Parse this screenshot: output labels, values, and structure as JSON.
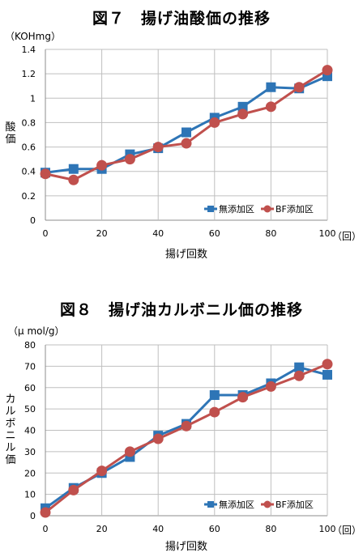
{
  "figures": [
    {
      "title": "図７　揚げ油酸価の推移",
      "unit": "（KOHmg）",
      "ylabel": "酸価",
      "xlabel": "揚げ回数",
      "xunit": "（回）"
    },
    {
      "title": "図８　揚げ油カルボニル価の推移",
      "unit": "（μ mol/g）",
      "ylabel": "カルボニル価",
      "xlabel": "揚げ回数",
      "xunit": "（回）"
    }
  ],
  "colors": {
    "series1": "#2e75b6",
    "series2": "#c0504d",
    "grid": "#bfbfbf",
    "axis": "#8c8c8c"
  },
  "chart_data": [
    {
      "type": "line",
      "title": "図７　揚げ油酸価の推移",
      "xlabel": "揚げ回数",
      "ylabel": "酸価",
      "x": [
        0,
        10,
        20,
        30,
        40,
        50,
        60,
        70,
        80,
        90,
        100
      ],
      "xticks": [
        "0",
        "20",
        "40",
        "60",
        "80",
        "100"
      ],
      "yticks": [
        "0",
        "0.2",
        "0.4",
        "0.6",
        "0.8",
        "1",
        "1.2",
        "1.4"
      ],
      "xlim": [
        0,
        100
      ],
      "ylim": [
        0,
        1.4
      ],
      "grid": true,
      "legend_position": "bottom-right",
      "series": [
        {
          "name": "無添加区",
          "marker": "square",
          "values": [
            0.39,
            0.42,
            0.42,
            0.54,
            0.59,
            0.72,
            0.84,
            0.93,
            1.09,
            1.08,
            1.18
          ]
        },
        {
          "name": "BF添加区",
          "marker": "circle",
          "values": [
            0.38,
            0.33,
            0.45,
            0.5,
            0.6,
            0.63,
            0.8,
            0.87,
            0.93,
            1.09,
            1.23
          ]
        }
      ]
    },
    {
      "type": "line",
      "title": "図８　揚げ油カルボニル価の推移",
      "xlabel": "揚げ回数",
      "ylabel": "カルボニル価",
      "x": [
        0,
        10,
        20,
        30,
        40,
        50,
        60,
        70,
        80,
        90,
        100
      ],
      "xticks": [
        "0",
        "20",
        "40",
        "60",
        "80",
        "100"
      ],
      "yticks": [
        "0",
        "10",
        "20",
        "30",
        "40",
        "50",
        "60",
        "70",
        "80"
      ],
      "xlim": [
        0,
        100
      ],
      "ylim": [
        0,
        80
      ],
      "grid": true,
      "legend_position": "bottom-right",
      "series": [
        {
          "name": "無添加区",
          "marker": "square",
          "values": [
            3.5,
            13.0,
            20.0,
            27.5,
            37.5,
            43.0,
            56.5,
            56.5,
            62.0,
            69.5,
            66.0
          ]
        },
        {
          "name": "BF添加区",
          "marker": "circle",
          "values": [
            1.5,
            12.0,
            21.0,
            30.0,
            36.0,
            42.0,
            48.5,
            55.5,
            60.5,
            65.5,
            71.0
          ]
        }
      ]
    }
  ]
}
